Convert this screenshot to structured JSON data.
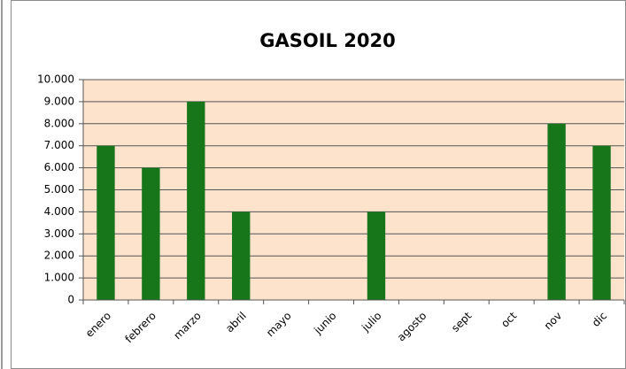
{
  "chart_data": {
    "type": "bar",
    "title": "GASOIL 2020",
    "categories": [
      "enero",
      "febrero",
      "marzo",
      "abril",
      "mayo",
      "junio",
      "julio",
      "agosto",
      "sept",
      "oct",
      "nov",
      "dic"
    ],
    "values": [
      7000,
      6000,
      9000,
      4000,
      0,
      0,
      4000,
      0,
      0,
      0,
      8000,
      7000
    ],
    "color": "#17751a",
    "ylim": [
      0,
      10000
    ],
    "yticks": [
      0,
      {
        "value": 1000,
        "label": "1.000"
      },
      {
        "value": 2000,
        "label": "2.000"
      },
      {
        "value": 3000,
        "label": "3.000"
      },
      {
        "value": 4000,
        "label": "4.000"
      },
      {
        "value": 5000,
        "label": "5.000"
      },
      {
        "value": 6000,
        "label": "6.000"
      },
      {
        "value": 7000,
        "label": "7.000"
      },
      {
        "value": 8000,
        "label": "8.000"
      },
      {
        "value": 9000,
        "label": "9.000"
      },
      {
        "value": 10000,
        "label": "10.000"
      }
    ],
    "grid": true
  }
}
